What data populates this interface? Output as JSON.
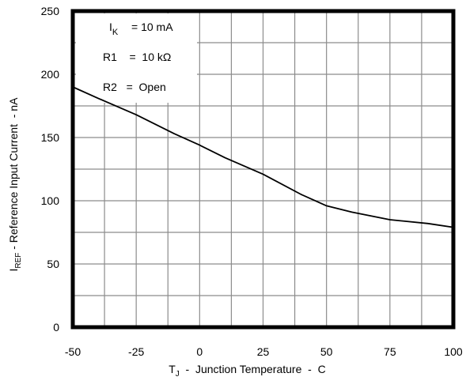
{
  "chart_data": {
    "type": "line",
    "title": "",
    "x": [
      -50,
      -40,
      -25,
      -10,
      0,
      10,
      25,
      40,
      50,
      60,
      75,
      90,
      100
    ],
    "series": [
      {
        "values": [
          190,
          181,
          168,
          153,
          144,
          134,
          121,
          105,
          96,
          91,
          85,
          82,
          79
        ]
      }
    ],
    "xlim": [
      -50,
      100
    ],
    "ylim": [
      0,
      250
    ],
    "x_ticks": [
      "-50",
      "-25",
      "0",
      "25",
      "50",
      "75",
      "100"
    ],
    "y_ticks": [
      "0",
      "50",
      "100",
      "150",
      "200",
      "250"
    ],
    "x_tick_values": [
      -50,
      -25,
      0,
      25,
      50,
      75,
      100
    ],
    "y_tick_values": [
      0,
      50,
      100,
      150,
      200,
      250
    ],
    "x_grid": [
      -50,
      -37.5,
      -25,
      -12.5,
      0,
      12.5,
      25,
      37.5,
      50,
      62.5,
      75,
      87.5,
      100
    ],
    "y_grid": [
      0,
      25,
      50,
      75,
      100,
      125,
      150,
      175,
      200,
      225,
      250
    ],
    "grid": true,
    "xlabel": {
      "main": "T",
      "sub": "J",
      "rest": "  -  Junction Temperature  -  C"
    },
    "ylabel": {
      "main": "I",
      "sub": "REF",
      "rest": " - Reference Input Current  - nA"
    },
    "annotations": {
      "ik": {
        "main": "I",
        "sub": "K",
        "rest": "= 10 mA"
      },
      "r1": "R1    =  10 kΩ",
      "r2": "R2   =  Open"
    },
    "colors": {
      "line": "#000000",
      "grid": "#8c8c8c",
      "frame": "#000000",
      "box": "#ffffff"
    }
  }
}
